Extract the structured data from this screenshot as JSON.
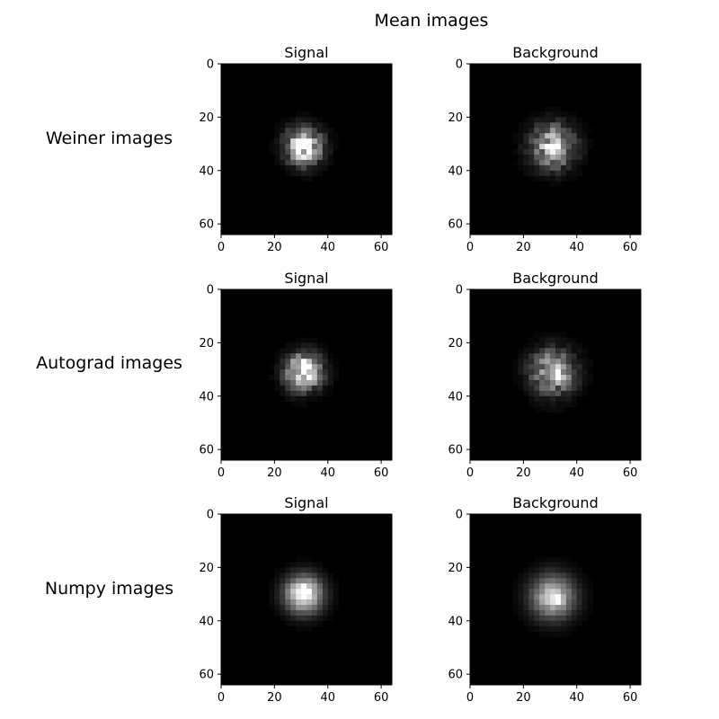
{
  "figure": {
    "suptitle": "Mean images"
  },
  "rows": [
    {
      "label": "Weiner images"
    },
    {
      "label": "Autograd images"
    },
    {
      "label": "Numpy images"
    }
  ],
  "chart_data": [
    {
      "type": "heatmap",
      "row": "Weiner images",
      "title": "Signal",
      "xlim": [
        0,
        64
      ],
      "ylim": [
        64,
        0
      ],
      "grid": false,
      "colormap": "gray",
      "xticks": [
        0,
        20,
        40,
        60
      ],
      "yticks": [
        0,
        20,
        40,
        60
      ],
      "blob": {
        "center_x": 31,
        "center_y": 31,
        "spread": 4.5,
        "peak": 1.0,
        "pixelated": true,
        "hotspot": [
          32,
          29
        ]
      }
    },
    {
      "type": "heatmap",
      "row": "Weiner images",
      "title": "Background",
      "xlim": [
        0,
        64
      ],
      "ylim": [
        64,
        0
      ],
      "grid": false,
      "colormap": "gray",
      "xticks": [
        0,
        20,
        40,
        60
      ],
      "yticks": [
        0,
        20,
        40,
        60
      ],
      "blob": {
        "center_x": 31,
        "center_y": 31,
        "spread": 5.5,
        "peak": 0.75,
        "pixelated": true,
        "hotspot": [
          33,
          32
        ]
      }
    },
    {
      "type": "heatmap",
      "row": "Autograd images",
      "title": "Signal",
      "xlim": [
        0,
        64
      ],
      "ylim": [
        64,
        0
      ],
      "grid": false,
      "colormap": "gray",
      "xticks": [
        0,
        20,
        40,
        60
      ],
      "yticks": [
        0,
        20,
        40,
        60
      ],
      "blob": {
        "center_x": 31,
        "center_y": 31,
        "spread": 4.5,
        "peak": 1.0,
        "pixelated": true,
        "hotspot": [
          32,
          29
        ]
      }
    },
    {
      "type": "heatmap",
      "row": "Autograd images",
      "title": "Background",
      "xlim": [
        0,
        64
      ],
      "ylim": [
        64,
        0
      ],
      "grid": false,
      "colormap": "gray",
      "xticks": [
        0,
        20,
        40,
        60
      ],
      "yticks": [
        0,
        20,
        40,
        60
      ],
      "blob": {
        "center_x": 31,
        "center_y": 31,
        "spread": 5.5,
        "peak": 0.75,
        "pixelated": true,
        "hotspot": [
          33,
          32
        ]
      }
    },
    {
      "type": "heatmap",
      "row": "Numpy images",
      "title": "Signal",
      "xlim": [
        0,
        64
      ],
      "ylim": [
        64,
        0
      ],
      "grid": false,
      "colormap": "gray",
      "xticks": [
        0,
        20,
        40,
        60
      ],
      "yticks": [
        0,
        20,
        40,
        60
      ],
      "blob": {
        "center_x": 31,
        "center_y": 30,
        "spread": 4.8,
        "peak": 1.0,
        "pixelated": false,
        "hotspot": [
          31,
          29
        ]
      }
    },
    {
      "type": "heatmap",
      "row": "Numpy images",
      "title": "Background",
      "xlim": [
        0,
        64
      ],
      "ylim": [
        64,
        0
      ],
      "grid": false,
      "colormap": "gray",
      "xticks": [
        0,
        20,
        40,
        60
      ],
      "yticks": [
        0,
        20,
        40,
        60
      ],
      "blob": {
        "center_x": 31,
        "center_y": 31,
        "spread": 5.6,
        "peak": 0.8,
        "pixelated": false,
        "hotspot": [
          33,
          32
        ]
      }
    }
  ]
}
